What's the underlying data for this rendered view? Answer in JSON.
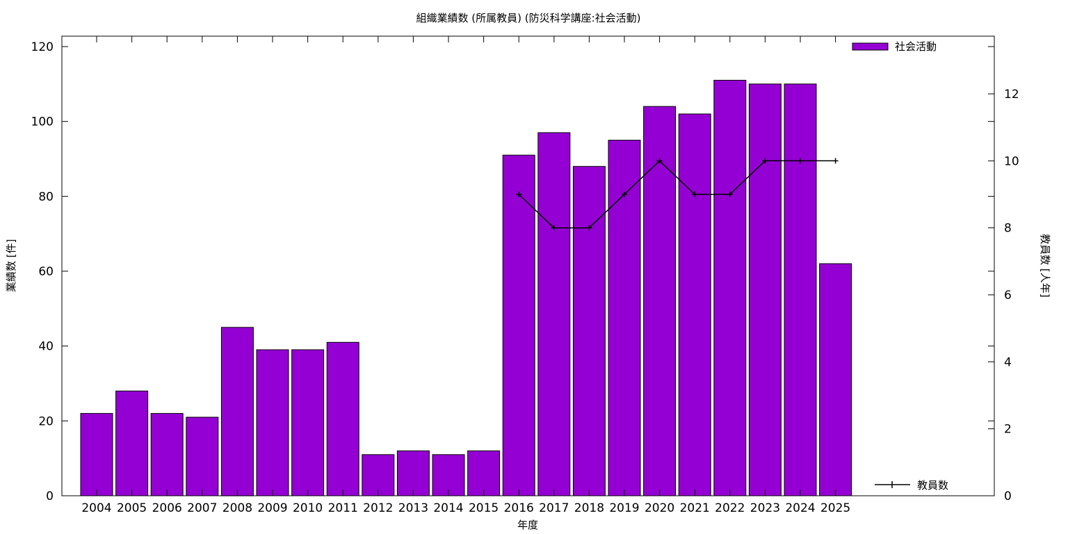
{
  "chart_data": {
    "type": "bar",
    "title": "組織業績数 (所属教員) (防災科学講座:社会活動)",
    "xlabel": "年度",
    "ylabel": "業績数 [件]",
    "y2label": "教員数 [人年]",
    "categories": [
      "2004",
      "2005",
      "2006",
      "2007",
      "2008",
      "2009",
      "2010",
      "2011",
      "2012",
      "2013",
      "2014",
      "2015",
      "2016",
      "2017",
      "2018",
      "2019",
      "2020",
      "2021",
      "2022",
      "2023",
      "2024",
      "2025"
    ],
    "ylim": [
      0,
      120
    ],
    "y2lim": [
      0,
      12
    ],
    "yticks": [
      0,
      20,
      40,
      60,
      80,
      100,
      120
    ],
    "y2ticks": [
      0,
      2,
      4,
      6,
      8,
      10,
      12
    ],
    "series": [
      {
        "name": "社会活動",
        "type": "bar",
        "axis": "left",
        "color": "#9400d3",
        "values": [
          22,
          28,
          22,
          21,
          45,
          39,
          39,
          41,
          11,
          12,
          11,
          12,
          91,
          97,
          88,
          95,
          104,
          102,
          111,
          110,
          110,
          62
        ]
      },
      {
        "name": "教員数",
        "type": "line",
        "axis": "right",
        "color": "#000000",
        "values": [
          null,
          null,
          null,
          null,
          null,
          null,
          null,
          null,
          null,
          null,
          null,
          null,
          9,
          8,
          8,
          9,
          10,
          9,
          9,
          10,
          10,
          10
        ]
      }
    ],
    "legend": [
      "top-right",
      "bottom-right"
    ],
    "grid": false
  }
}
